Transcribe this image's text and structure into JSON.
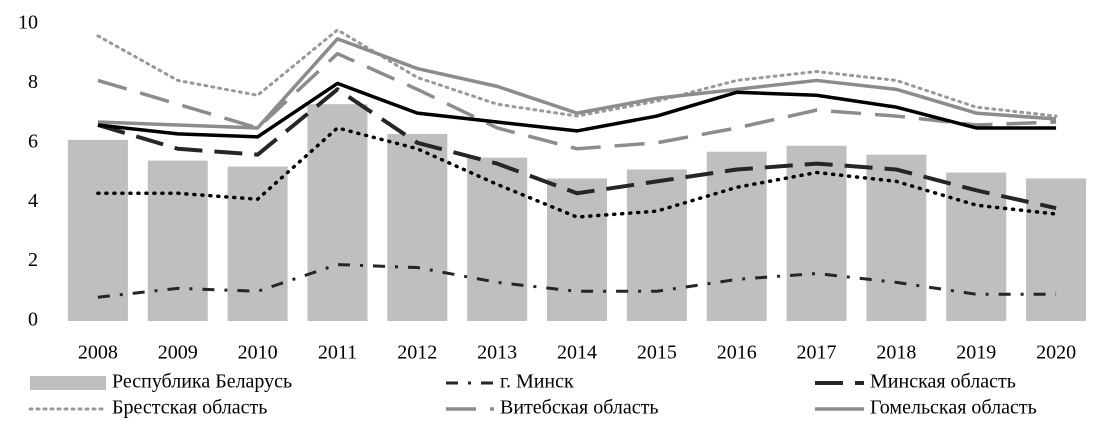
{
  "chart_data": {
    "type": "bar",
    "categories": [
      "2008",
      "2009",
      "2010",
      "2011",
      "2012",
      "2013",
      "2014",
      "2015",
      "2016",
      "2017",
      "2018",
      "2019",
      "2020"
    ],
    "ylim": [
      0,
      10
    ],
    "yticks": [
      0,
      2,
      4,
      6,
      8,
      10
    ],
    "grid": false,
    "legend": "bottom",
    "series": [
      {
        "name": "Республика Беларусь",
        "type": "bar",
        "color": "#bfbfbf",
        "values": [
          6.1,
          5.4,
          5.2,
          7.3,
          6.3,
          5.5,
          4.8,
          5.1,
          5.7,
          5.9,
          5.6,
          5.0,
          4.8
        ]
      },
      {
        "name": "г. Минск",
        "type": "line",
        "color": "#262626",
        "values": [
          0.8,
          1.1,
          1.0,
          1.9,
          1.8,
          1.3,
          1.0,
          1.0,
          1.4,
          1.6,
          1.3,
          0.9,
          0.9
        ]
      },
      {
        "name": "Минская область",
        "type": "line",
        "color": "#262626",
        "values": [
          6.6,
          5.8,
          5.6,
          7.8,
          6.0,
          5.3,
          4.3,
          4.7,
          5.1,
          5.3,
          5.1,
          4.4,
          3.8
        ]
      },
      {
        "name": "Брестская область",
        "type": "line",
        "color": "#999999",
        "values": [
          9.6,
          8.1,
          7.6,
          9.8,
          8.2,
          7.3,
          6.9,
          7.4,
          8.1,
          8.4,
          8.1,
          7.2,
          6.9
        ]
      },
      {
        "name": "Витебская область",
        "type": "line",
        "color": "#8c8c8c",
        "values": [
          8.1,
          7.3,
          6.5,
          9.0,
          7.8,
          6.5,
          5.8,
          6.0,
          6.5,
          7.1,
          6.9,
          6.6,
          6.7
        ]
      },
      {
        "name": "Гомельская область",
        "type": "line",
        "color": "#8c8c8c",
        "values": [
          6.7,
          6.6,
          6.5,
          9.5,
          8.5,
          7.9,
          7.0,
          7.5,
          7.8,
          8.1,
          7.8,
          7.0,
          6.8
        ]
      },
      {
        "type": "line",
        "color": "#000000",
        "values": [
          6.6,
          6.3,
          6.2,
          8.0,
          7.0,
          6.7,
          6.4,
          6.9,
          7.7,
          7.6,
          7.2,
          6.5,
          6.5
        ]
      },
      {
        "type": "line",
        "color": "#000000",
        "values": [
          4.3,
          4.3,
          4.1,
          6.5,
          5.8,
          4.6,
          3.5,
          3.7,
          4.5,
          5.0,
          4.7,
          3.9,
          3.6
        ]
      }
    ]
  }
}
